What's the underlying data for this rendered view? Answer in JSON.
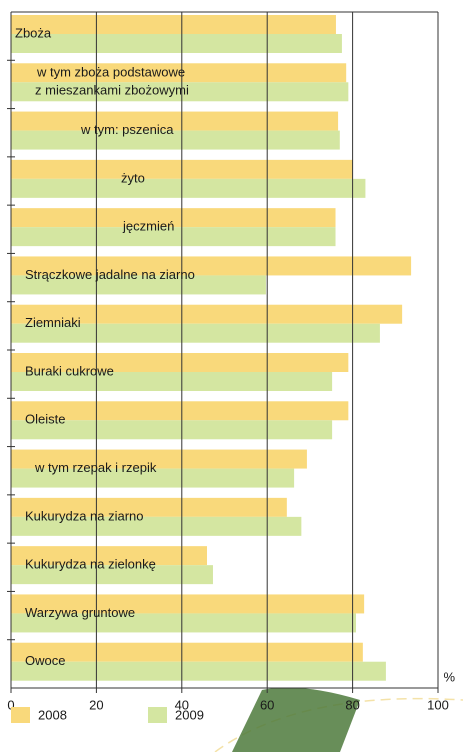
{
  "chart_data": {
    "type": "bar",
    "orientation": "horizontal",
    "categories": [
      "Zboża",
      "w tym zboża podstawowe\nz mieszankami zbożowymi",
      "w tym: pszenica",
      "żyto",
      "jęczmień",
      "Strączkowe jadalne na ziarno",
      "Ziemniaki",
      "Buraki cukrowe",
      "Oleiste",
      "w tym rzepak i rzepik",
      "Kukurydza na ziarno",
      "Kukurydza na zielonkę",
      "Warzywa gruntowe",
      "Owoce"
    ],
    "series": [
      {
        "name": "2008",
        "color": "#f9d97b",
        "values": [
          76.1,
          78.5,
          76.6,
          80,
          76,
          93.7,
          91.6,
          79,
          79,
          69.3,
          64.6,
          45.9,
          82.7,
          82.4
        ]
      },
      {
        "name": "2009",
        "color": "#d4e6a1",
        "values": [
          77.5,
          79,
          77,
          83,
          76,
          59.7,
          86.4,
          75.2,
          75.2,
          66.3,
          68,
          47.3,
          80.8,
          87.8
        ]
      }
    ],
    "xlim": [
      0,
      100
    ],
    "xticks": [
      0,
      20,
      40,
      60,
      80,
      100
    ],
    "xlabel": "%",
    "grid": true
  }
}
